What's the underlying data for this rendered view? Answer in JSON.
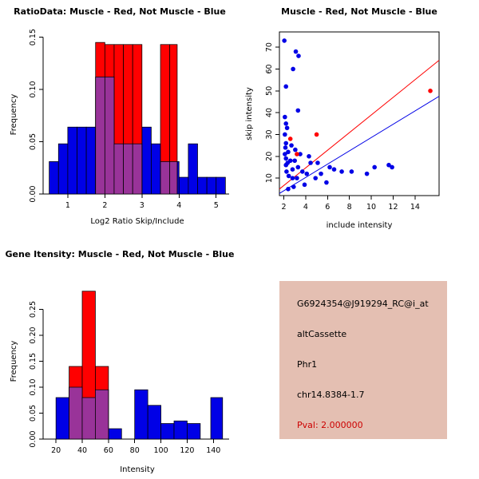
{
  "colors": {
    "muscle_red": "#FF0000",
    "not_muscle_blue": "#0000E6",
    "overlap_purple": "#993399",
    "pval_red": "#CC0000",
    "info_box_bg": "#E4BFB2",
    "axis_black": "#000000"
  },
  "info_panel": {
    "probe_id": "G6924354@J919294_RC@i_at",
    "splice_type": "altCassette",
    "gene_symbol": "Phr1",
    "location": "chr14.8384-1.7",
    "pval": "Pval: 2.000000"
  },
  "chart_data": [
    {
      "id": "ratio_hist",
      "type": "bar",
      "title": "RatioData: Muscle - Red, Not Muscle - Blue",
      "xlabel": "Log2 Ratio Skip/Include",
      "ylabel": "Frequency",
      "xlim": [
        0.4,
        5.35
      ],
      "ylim": [
        0,
        0.152
      ],
      "xticks": [
        1,
        2,
        3,
        4,
        5
      ],
      "ytick_labels": [
        "0.00",
        "0.05",
        "0.10",
        "0.15"
      ],
      "series": {
        "blue_bins": [
          [
            0.5,
            0.75,
            0.031
          ],
          [
            0.75,
            1.0,
            0.048
          ],
          [
            1.0,
            1.25,
            0.064
          ],
          [
            1.25,
            1.5,
            0.064
          ],
          [
            1.5,
            1.75,
            0.064
          ],
          [
            1.75,
            2.0,
            0.112
          ],
          [
            2.0,
            2.25,
            0.112
          ],
          [
            2.25,
            2.5,
            0.048
          ],
          [
            2.5,
            2.75,
            0.048
          ],
          [
            2.75,
            3.0,
            0.048
          ],
          [
            3.0,
            3.25,
            0.064
          ],
          [
            3.25,
            3.5,
            0.048
          ],
          [
            3.5,
            3.75,
            0.031
          ],
          [
            3.75,
            4.0,
            0.031
          ],
          [
            4.0,
            4.25,
            0.016
          ],
          [
            4.25,
            4.5,
            0.048
          ],
          [
            4.5,
            4.75,
            0.016
          ],
          [
            4.75,
            5.0,
            0.016
          ],
          [
            5.0,
            5.25,
            0.016
          ]
        ],
        "red_bins": [
          [
            1.75,
            2.0,
            0.145
          ],
          [
            2.0,
            2.25,
            0.143
          ],
          [
            2.25,
            2.5,
            0.143
          ],
          [
            2.5,
            2.75,
            0.143
          ],
          [
            2.75,
            3.0,
            0.143
          ],
          [
            3.5,
            3.75,
            0.143
          ],
          [
            3.75,
            3.95,
            0.143
          ]
        ]
      }
    },
    {
      "id": "scatter",
      "type": "scatter",
      "title": "Muscle - Red, Not Muscle - Blue",
      "xlabel": "include intensity",
      "ylabel": "skip intensity",
      "xlim": [
        1.6,
        16.2
      ],
      "ylim": [
        2,
        77
      ],
      "xticks": [
        2,
        4,
        6,
        8,
        10,
        12,
        14
      ],
      "ytick_labels": [
        "10",
        "20",
        "30",
        "40",
        "50",
        "60",
        "70"
      ],
      "series": {
        "blue_points": [
          [
            2.05,
            73
          ],
          [
            3.1,
            68
          ],
          [
            3.35,
            66
          ],
          [
            2.85,
            60
          ],
          [
            2.2,
            52
          ],
          [
            3.3,
            41
          ],
          [
            2.1,
            38
          ],
          [
            2.2,
            35
          ],
          [
            2.3,
            33
          ],
          [
            2.1,
            30
          ],
          [
            2.2,
            26
          ],
          [
            2.7,
            25
          ],
          [
            2.15,
            24
          ],
          [
            3.05,
            23
          ],
          [
            2.4,
            22
          ],
          [
            3.5,
            21
          ],
          [
            2.1,
            21
          ],
          [
            4.3,
            20
          ],
          [
            2.2,
            19
          ],
          [
            2.6,
            18
          ],
          [
            3.0,
            18
          ],
          [
            2.35,
            17
          ],
          [
            4.45,
            17
          ],
          [
            5.1,
            17
          ],
          [
            2.2,
            16
          ],
          [
            3.3,
            15
          ],
          [
            6.2,
            15
          ],
          [
            10.3,
            15
          ],
          [
            11.9,
            15
          ],
          [
            11.6,
            16
          ],
          [
            2.8,
            14
          ],
          [
            6.6,
            14
          ],
          [
            2.25,
            13
          ],
          [
            3.7,
            13
          ],
          [
            7.3,
            13
          ],
          [
            8.2,
            13
          ],
          [
            4.1,
            12
          ],
          [
            5.4,
            12
          ],
          [
            9.6,
            12
          ],
          [
            2.45,
            11
          ],
          [
            2.8,
            10
          ],
          [
            3.2,
            10
          ],
          [
            4.9,
            10
          ],
          [
            5.9,
            8
          ],
          [
            3.9,
            7
          ],
          [
            2.9,
            6
          ],
          [
            2.4,
            5
          ]
        ],
        "red_points": [
          [
            2.6,
            28
          ],
          [
            3.2,
            21
          ],
          [
            5.0,
            30
          ],
          [
            15.4,
            50
          ]
        ]
      },
      "fit_lines": {
        "red": [
          1.6,
          5.0,
          16.2,
          64.0
        ],
        "blue": [
          1.6,
          3.0,
          16.2,
          47.5
        ]
      }
    },
    {
      "id": "gene_hist",
      "type": "bar",
      "title": "Gene Itensity: Muscle - Red, Not Muscle - Blue",
      "xlabel": "Intensity",
      "ylabel": "Frequency",
      "xlim": [
        12,
        152
      ],
      "ylim": [
        0,
        0.3
      ],
      "xticks": [
        20,
        40,
        60,
        80,
        100,
        120,
        140
      ],
      "ytick_labels": [
        "0.00",
        "0.05",
        "0.10",
        "0.15",
        "0.20",
        "0.25"
      ],
      "series": {
        "blue_bins": [
          [
            20,
            30,
            0.08
          ],
          [
            30,
            40,
            0.1
          ],
          [
            40,
            50,
            0.08
          ],
          [
            50,
            60,
            0.095
          ],
          [
            60,
            70,
            0.02
          ],
          [
            80,
            90,
            0.095
          ],
          [
            90,
            100,
            0.065
          ],
          [
            100,
            110,
            0.03
          ],
          [
            110,
            120,
            0.035
          ],
          [
            120,
            130,
            0.03
          ],
          [
            138,
            147,
            0.08
          ]
        ],
        "red_bins": [
          [
            30,
            40,
            0.14
          ],
          [
            40,
            50,
            0.285
          ],
          [
            50,
            60,
            0.14
          ]
        ]
      }
    }
  ]
}
